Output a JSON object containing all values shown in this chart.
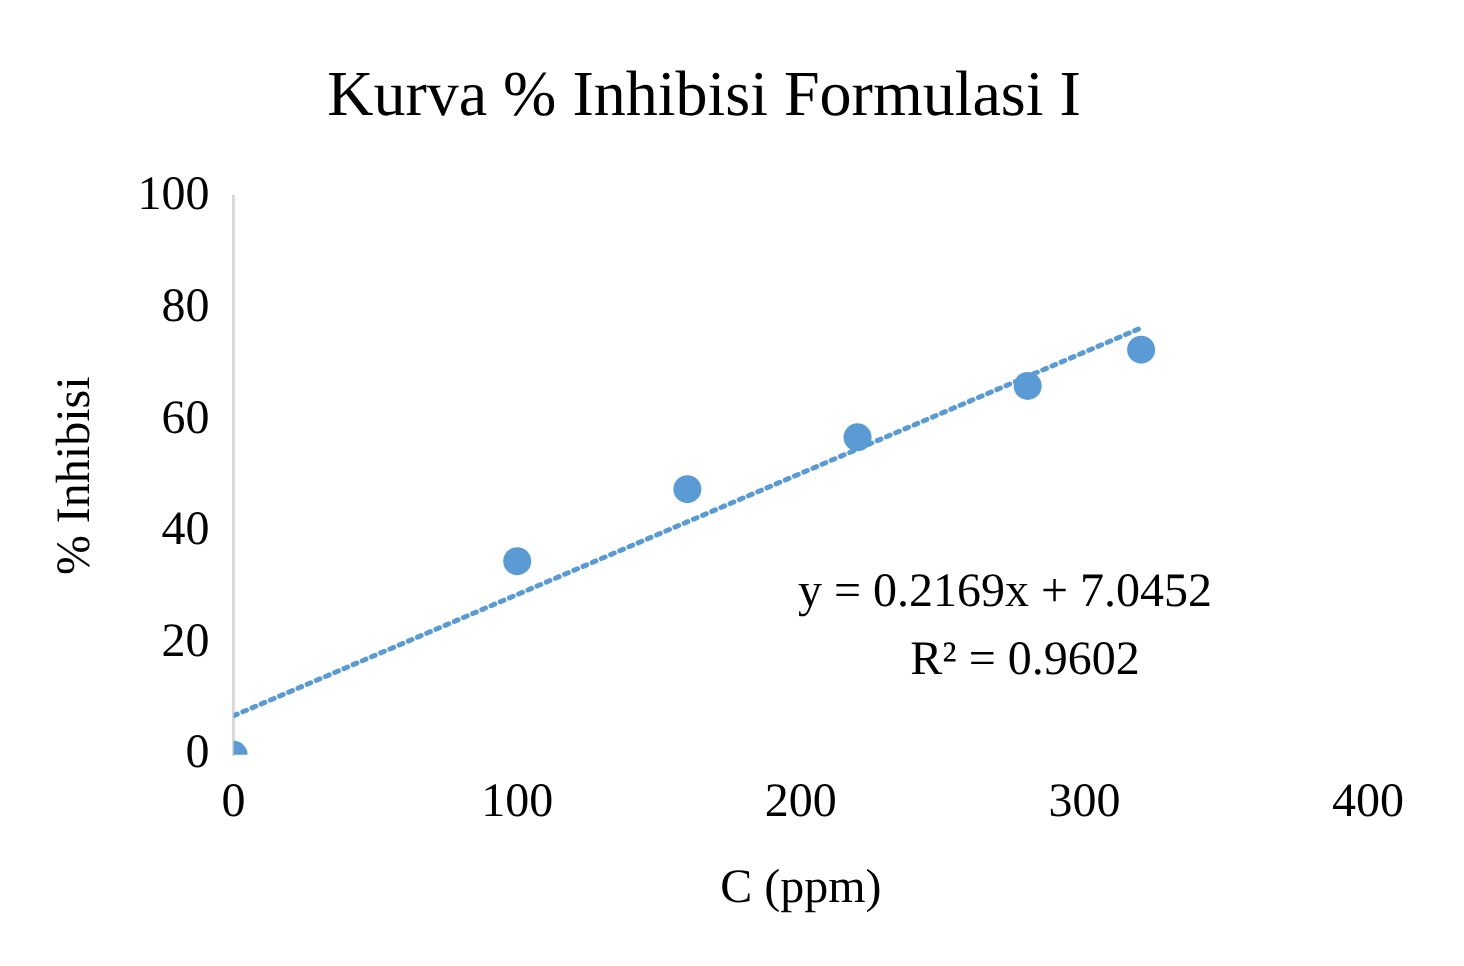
{
  "chart_data": {
    "type": "scatter",
    "title": "Kurva % Inhibisi Formulasi I",
    "xlabel": "C (ppm)",
    "ylabel": "% Inhibisi",
    "x": [
      0,
      100,
      160,
      220,
      280,
      320
    ],
    "series": [
      {
        "color": "#5b9bd5",
        "values": [
          0,
          34.7,
          47.6,
          56.9,
          66.1,
          72.6
        ],
        "marker": "circle"
      },
      {
        "type": "line",
        "color": "#5b9bd5",
        "x": [
          0,
          320
        ],
        "values": [
          7,
          76.5
        ],
        "line_style": "dotted",
        "marker": "none"
      }
    ],
    "xlim": [
      0,
      400
    ],
    "xticks": [
      0,
      100,
      200,
      300,
      400
    ],
    "ylim": [
      0,
      100
    ],
    "yticks": [
      0,
      20,
      40,
      60,
      80,
      100
    ],
    "grid": false,
    "legend": false,
    "annotations": [
      "y = 0.2169x + 7.0452",
      "R² = 0.9602"
    ]
  }
}
